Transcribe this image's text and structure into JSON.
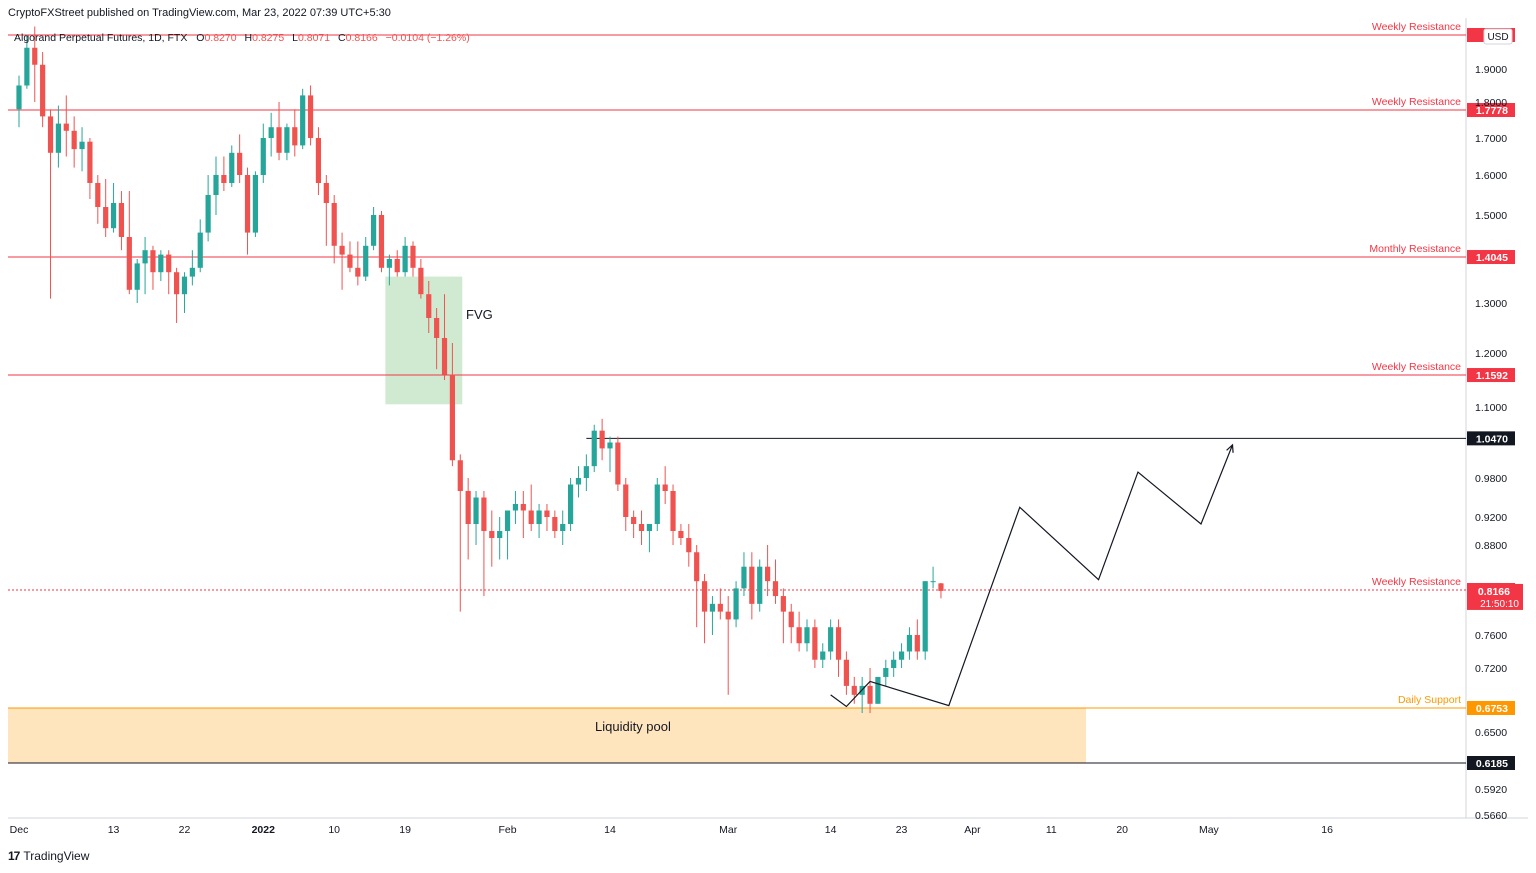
{
  "header": {
    "publisher": "CryptoFXStreet published on TradingView.com, Mar 23, 2022 07:39 UTC+5:30",
    "symbol": "Algorand Perpetual Futures, 1D, FTX",
    "o_label": "O",
    "o_value": "0.8270",
    "h_label": "H",
    "h_value": "0.8275",
    "l_label": "L",
    "l_value": "0.8071",
    "c_label": "C",
    "c_value": "0.8166",
    "change": "−0.0104 (−1.26%)"
  },
  "footer": {
    "logo_text": "TradingView",
    "logo_mark": "17"
  },
  "colors": {
    "up": "#26a69a",
    "down": "#ef5350",
    "resistance": "#f23645",
    "support": "#ff9800",
    "zone": "#ffe0b2",
    "fvg": "#c8e6c9",
    "text": "#131722"
  },
  "chart_data": {
    "type": "candlestick",
    "currency": "USD",
    "x_ticks": [
      "Dec",
      "13",
      "22",
      "2022",
      "10",
      "19",
      "Feb",
      "14",
      "Mar",
      "14",
      "23",
      "Apr",
      "11",
      "20",
      "May",
      "16"
    ],
    "y_ticks": [
      "1.9000",
      "1.8000",
      "1.7000",
      "1.6000",
      "1.5000",
      "1.3000",
      "1.2000",
      "1.1000",
      "0.9800",
      "0.9200",
      "0.8800",
      "0.7600",
      "0.7200",
      "0.6500",
      "0.5920",
      "0.5660"
    ],
    "levels": [
      {
        "label": "Weekly Resistance",
        "price": "2",
        "value": 1.98,
        "kind": "resistance"
      },
      {
        "label": "Weekly Resistance",
        "price": "1.7778",
        "value": 1.7778,
        "kind": "resistance"
      },
      {
        "label": "Monthly Resistance",
        "price": "1.4045",
        "value": 1.4045,
        "kind": "resistance"
      },
      {
        "label": "Weekly Resistance",
        "price": "1.1592",
        "value": 1.1592,
        "kind": "resistance"
      },
      {
        "label": "",
        "price": "1.0470",
        "value": 1.047,
        "kind": "black"
      },
      {
        "label": "Weekly Resistance",
        "price": "0.8178",
        "value": 0.8178,
        "kind": "resistance"
      },
      {
        "label": "Daily Support",
        "price": "0.6753",
        "value": 0.6753,
        "kind": "support"
      },
      {
        "label": "",
        "price": "0.6185",
        "value": 0.6185,
        "kind": "black"
      }
    ],
    "last_price": "0.8166",
    "countdown": "21:50:10",
    "annotations": {
      "fvg": "FVG",
      "liquidity": "Liquidity pool"
    },
    "ohlc": [
      [
        1.78,
        1.88,
        1.73,
        1.85
      ],
      [
        1.85,
        1.98,
        1.84,
        1.95
      ],
      [
        1.95,
        2.0,
        1.8,
        1.91
      ],
      [
        1.91,
        1.94,
        1.73,
        1.76
      ],
      [
        1.76,
        1.78,
        1.31,
        1.66
      ],
      [
        1.66,
        1.79,
        1.62,
        1.74
      ],
      [
        1.74,
        1.82,
        1.65,
        1.72
      ],
      [
        1.72,
        1.76,
        1.62,
        1.67
      ],
      [
        1.67,
        1.73,
        1.61,
        1.69
      ],
      [
        1.69,
        1.7,
        1.54,
        1.58
      ],
      [
        1.58,
        1.6,
        1.48,
        1.52
      ],
      [
        1.52,
        1.59,
        1.45,
        1.47
      ],
      [
        1.47,
        1.58,
        1.46,
        1.53
      ],
      [
        1.53,
        1.56,
        1.42,
        1.45
      ],
      [
        1.45,
        1.56,
        1.32,
        1.33
      ],
      [
        1.33,
        1.4,
        1.3,
        1.39
      ],
      [
        1.39,
        1.45,
        1.32,
        1.42
      ],
      [
        1.42,
        1.43,
        1.33,
        1.37
      ],
      [
        1.37,
        1.42,
        1.35,
        1.41
      ],
      [
        1.41,
        1.42,
        1.32,
        1.37
      ],
      [
        1.37,
        1.38,
        1.26,
        1.32
      ],
      [
        1.32,
        1.37,
        1.28,
        1.36
      ],
      [
        1.36,
        1.42,
        1.34,
        1.38
      ],
      [
        1.38,
        1.49,
        1.37,
        1.46
      ],
      [
        1.46,
        1.6,
        1.44,
        1.55
      ],
      [
        1.55,
        1.65,
        1.5,
        1.6
      ],
      [
        1.6,
        1.65,
        1.56,
        1.58
      ],
      [
        1.58,
        1.68,
        1.57,
        1.66
      ],
      [
        1.66,
        1.71,
        1.58,
        1.6
      ],
      [
        1.6,
        1.62,
        1.41,
        1.46
      ],
      [
        1.46,
        1.61,
        1.45,
        1.6
      ],
      [
        1.6,
        1.74,
        1.58,
        1.7
      ],
      [
        1.7,
        1.77,
        1.65,
        1.73
      ],
      [
        1.73,
        1.8,
        1.64,
        1.66
      ],
      [
        1.66,
        1.74,
        1.64,
        1.73
      ],
      [
        1.73,
        1.78,
        1.65,
        1.68
      ],
      [
        1.68,
        1.84,
        1.67,
        1.82
      ],
      [
        1.82,
        1.85,
        1.68,
        1.7
      ],
      [
        1.7,
        1.73,
        1.55,
        1.58
      ],
      [
        1.58,
        1.6,
        1.43,
        1.53
      ],
      [
        1.53,
        1.55,
        1.39,
        1.43
      ],
      [
        1.43,
        1.46,
        1.33,
        1.41
      ],
      [
        1.41,
        1.44,
        1.37,
        1.38
      ],
      [
        1.38,
        1.44,
        1.34,
        1.36
      ],
      [
        1.36,
        1.45,
        1.35,
        1.43
      ],
      [
        1.43,
        1.52,
        1.42,
        1.5
      ],
      [
        1.5,
        1.51,
        1.37,
        1.38
      ],
      [
        1.38,
        1.41,
        1.34,
        1.4
      ],
      [
        1.4,
        1.42,
        1.36,
        1.37
      ],
      [
        1.37,
        1.45,
        1.36,
        1.43
      ],
      [
        1.43,
        1.44,
        1.36,
        1.38
      ],
      [
        1.38,
        1.4,
        1.31,
        1.32
      ],
      [
        1.32,
        1.35,
        1.24,
        1.27
      ],
      [
        1.27,
        1.29,
        1.17,
        1.23
      ],
      [
        1.23,
        1.32,
        1.15,
        1.16
      ],
      [
        1.16,
        1.22,
        1.0,
        1.01
      ],
      [
        1.01,
        1.02,
        0.79,
        0.96
      ],
      [
        0.96,
        0.98,
        0.86,
        0.91
      ],
      [
        0.91,
        0.96,
        0.88,
        0.95
      ],
      [
        0.95,
        0.96,
        0.81,
        0.9
      ],
      [
        0.9,
        0.93,
        0.85,
        0.89
      ],
      [
        0.89,
        0.92,
        0.86,
        0.9
      ],
      [
        0.9,
        0.93,
        0.86,
        0.93
      ],
      [
        0.93,
        0.96,
        0.91,
        0.94
      ],
      [
        0.94,
        0.96,
        0.89,
        0.93
      ],
      [
        0.93,
        0.97,
        0.9,
        0.91
      ],
      [
        0.91,
        0.94,
        0.89,
        0.93
      ],
      [
        0.93,
        0.94,
        0.9,
        0.92
      ],
      [
        0.92,
        0.93,
        0.89,
        0.9
      ],
      [
        0.9,
        0.93,
        0.88,
        0.91
      ],
      [
        0.91,
        0.98,
        0.9,
        0.97
      ],
      [
        0.97,
        1.0,
        0.95,
        0.98
      ],
      [
        0.98,
        1.02,
        0.96,
        1.0
      ],
      [
        1.0,
        1.07,
        0.99,
        1.06
      ],
      [
        1.06,
        1.08,
        1.01,
        1.03
      ],
      [
        1.03,
        1.05,
        0.99,
        1.04
      ],
      [
        1.04,
        1.05,
        0.96,
        0.97
      ],
      [
        0.97,
        0.98,
        0.9,
        0.92
      ],
      [
        0.92,
        0.93,
        0.89,
        0.91
      ],
      [
        0.91,
        0.93,
        0.88,
        0.9
      ],
      [
        0.9,
        0.91,
        0.87,
        0.91
      ],
      [
        0.91,
        0.98,
        0.9,
        0.97
      ],
      [
        0.97,
        1.0,
        0.94,
        0.96
      ],
      [
        0.96,
        0.97,
        0.88,
        0.9
      ],
      [
        0.9,
        0.91,
        0.88,
        0.89
      ],
      [
        0.89,
        0.91,
        0.85,
        0.87
      ],
      [
        0.87,
        0.88,
        0.77,
        0.83
      ],
      [
        0.83,
        0.84,
        0.75,
        0.79
      ],
      [
        0.79,
        0.81,
        0.76,
        0.8
      ],
      [
        0.8,
        0.82,
        0.78,
        0.79
      ],
      [
        0.79,
        0.81,
        0.69,
        0.78
      ],
      [
        0.78,
        0.83,
        0.77,
        0.82
      ],
      [
        0.82,
        0.87,
        0.81,
        0.85
      ],
      [
        0.85,
        0.87,
        0.78,
        0.8
      ],
      [
        0.8,
        0.86,
        0.79,
        0.85
      ],
      [
        0.85,
        0.88,
        0.81,
        0.83
      ],
      [
        0.83,
        0.86,
        0.8,
        0.81
      ],
      [
        0.81,
        0.82,
        0.75,
        0.79
      ],
      [
        0.79,
        0.8,
        0.75,
        0.77
      ],
      [
        0.77,
        0.79,
        0.74,
        0.75
      ],
      [
        0.75,
        0.78,
        0.74,
        0.77
      ],
      [
        0.77,
        0.78,
        0.72,
        0.73
      ],
      [
        0.73,
        0.75,
        0.72,
        0.74
      ],
      [
        0.74,
        0.78,
        0.73,
        0.77
      ],
      [
        0.77,
        0.78,
        0.71,
        0.73
      ],
      [
        0.73,
        0.74,
        0.69,
        0.7
      ],
      [
        0.7,
        0.71,
        0.68,
        0.69
      ],
      [
        0.69,
        0.71,
        0.67,
        0.7
      ],
      [
        0.7,
        0.72,
        0.67,
        0.68
      ],
      [
        0.68,
        0.71,
        0.68,
        0.71
      ],
      [
        0.71,
        0.73,
        0.7,
        0.72
      ],
      [
        0.72,
        0.74,
        0.71,
        0.73
      ],
      [
        0.73,
        0.75,
        0.72,
        0.74
      ],
      [
        0.74,
        0.77,
        0.73,
        0.76
      ],
      [
        0.76,
        0.78,
        0.73,
        0.74
      ],
      [
        0.74,
        0.83,
        0.73,
        0.83
      ],
      [
        0.83,
        0.85,
        0.82,
        0.83
      ],
      [
        0.827,
        0.8275,
        0.8071,
        0.8166
      ]
    ],
    "projection": [
      {
        "x": "Mar 14",
        "y": 0.69
      },
      {
        "x": "Mar 16",
        "y": 0.677
      },
      {
        "x": "Mar 19",
        "y": 0.705
      },
      {
        "x": "Mar 29",
        "y": 0.678
      },
      {
        "x": "Apr 7",
        "y": 0.935
      },
      {
        "x": "Apr 17",
        "y": 0.832
      },
      {
        "x": "Apr 22",
        "y": 0.99
      },
      {
        "x": "Apr 30",
        "y": 0.91
      },
      {
        "x": "May 4",
        "y": 1.036
      }
    ]
  }
}
